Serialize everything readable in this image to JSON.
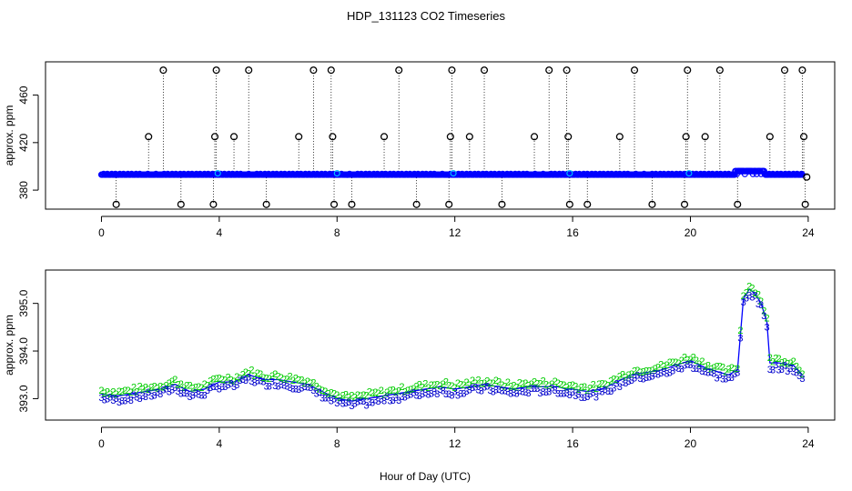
{
  "figure": {
    "title": "HDP_131123  CO2 Timeseries",
    "xlabel": "Hour of Day (UTC)"
  },
  "chart_data": [
    {
      "type": "scatter",
      "title": "",
      "xlabel": "",
      "ylabel": "approx. ppm",
      "xlim": [
        -1.9,
        24.9
      ],
      "ylim": [
        364,
        488
      ],
      "xticks": [
        0,
        4,
        8,
        12,
        16,
        20,
        24
      ],
      "yticks": [
        380,
        420,
        460
      ],
      "grid": false,
      "colors": {
        "baseline": "#0000ff",
        "baseline2": "#00c8ff",
        "outlier": "#000000"
      },
      "baseline": {
        "x_range": [
          0,
          23.8
        ],
        "y": 393,
        "bump": {
          "x_start": 21.5,
          "x_end": 22.5,
          "y": 396
        }
      },
      "spikes": [
        {
          "x": 0.5,
          "y": 368
        },
        {
          "x": 1.6,
          "y": 425
        },
        {
          "x": 2.1,
          "y": 481
        },
        {
          "x": 2.7,
          "y": 368
        },
        {
          "x": 3.8,
          "y": 368
        },
        {
          "x": 3.85,
          "y": 425
        },
        {
          "x": 3.9,
          "y": 481
        },
        {
          "x": 4.5,
          "y": 425
        },
        {
          "x": 5.0,
          "y": 481
        },
        {
          "x": 5.6,
          "y": 368
        },
        {
          "x": 6.7,
          "y": 425
        },
        {
          "x": 7.2,
          "y": 481
        },
        {
          "x": 7.8,
          "y": 481
        },
        {
          "x": 7.85,
          "y": 425
        },
        {
          "x": 7.9,
          "y": 368
        },
        {
          "x": 8.5,
          "y": 368
        },
        {
          "x": 9.6,
          "y": 425
        },
        {
          "x": 10.1,
          "y": 481
        },
        {
          "x": 10.7,
          "y": 368
        },
        {
          "x": 11.8,
          "y": 368
        },
        {
          "x": 11.85,
          "y": 425
        },
        {
          "x": 11.9,
          "y": 481
        },
        {
          "x": 12.5,
          "y": 425
        },
        {
          "x": 13.0,
          "y": 481
        },
        {
          "x": 13.6,
          "y": 368
        },
        {
          "x": 14.7,
          "y": 425
        },
        {
          "x": 15.2,
          "y": 481
        },
        {
          "x": 15.8,
          "y": 481
        },
        {
          "x": 15.85,
          "y": 425
        },
        {
          "x": 15.9,
          "y": 368
        },
        {
          "x": 16.5,
          "y": 368
        },
        {
          "x": 17.6,
          "y": 425
        },
        {
          "x": 18.1,
          "y": 481
        },
        {
          "x": 18.7,
          "y": 368
        },
        {
          "x": 19.8,
          "y": 368
        },
        {
          "x": 19.85,
          "y": 425
        },
        {
          "x": 19.9,
          "y": 481
        },
        {
          "x": 20.5,
          "y": 425
        },
        {
          "x": 21.0,
          "y": 481
        },
        {
          "x": 21.6,
          "y": 368
        },
        {
          "x": 22.7,
          "y": 425
        },
        {
          "x": 23.2,
          "y": 481
        },
        {
          "x": 23.8,
          "y": 481
        },
        {
          "x": 23.85,
          "y": 425
        },
        {
          "x": 23.9,
          "y": 368
        },
        {
          "x": 23.95,
          "y": 391
        }
      ]
    },
    {
      "type": "line",
      "title": "",
      "xlabel": "",
      "ylabel": "approx. ppm",
      "xlim": [
        -1.9,
        24.9
      ],
      "ylim": [
        392.55,
        395.7
      ],
      "xticks": [
        0,
        4,
        8,
        12,
        16,
        20,
        24
      ],
      "yticks": [
        393.0,
        394.0,
        395.0
      ],
      "ytick_labels": [
        "393.0",
        "394.0",
        "395.0"
      ],
      "grid": false,
      "colors": {
        "line": "#0000ff",
        "series2": "#00cc00",
        "series3": "#0000cc"
      },
      "series": [
        {
          "marker": "2",
          "offset": 0.08
        },
        {
          "marker": "3",
          "offset": -0.08
        }
      ],
      "x": [
        0,
        0.5,
        1,
        1.5,
        2,
        2.5,
        3,
        3.5,
        4,
        4.5,
        5,
        5.5,
        6,
        6.5,
        7,
        7.5,
        8,
        8.5,
        9,
        9.5,
        10,
        10.5,
        11,
        11.5,
        12,
        12.5,
        13,
        13.5,
        14,
        14.5,
        15,
        15.5,
        15.8,
        16,
        16.5,
        17,
        17.5,
        18,
        18.5,
        19,
        19.5,
        20,
        20.5,
        21,
        21.3,
        21.6,
        21.8,
        22.0,
        22.2,
        22.4,
        22.6,
        22.7,
        23,
        23.5,
        23.8
      ],
      "y": [
        393.1,
        393.05,
        393.1,
        393.15,
        393.2,
        393.3,
        393.15,
        393.2,
        393.35,
        393.35,
        393.5,
        393.4,
        393.4,
        393.35,
        393.3,
        393.15,
        393.0,
        392.95,
        393.0,
        393.05,
        393.1,
        393.15,
        393.2,
        393.25,
        393.2,
        393.25,
        393.3,
        393.25,
        393.2,
        393.25,
        393.25,
        393.25,
        393.2,
        393.2,
        393.15,
        393.2,
        393.35,
        393.5,
        393.55,
        393.6,
        393.7,
        393.8,
        393.65,
        393.55,
        393.5,
        393.6,
        395.1,
        395.3,
        395.2,
        395.0,
        394.6,
        393.75,
        393.75,
        393.7,
        393.5
      ]
    }
  ]
}
